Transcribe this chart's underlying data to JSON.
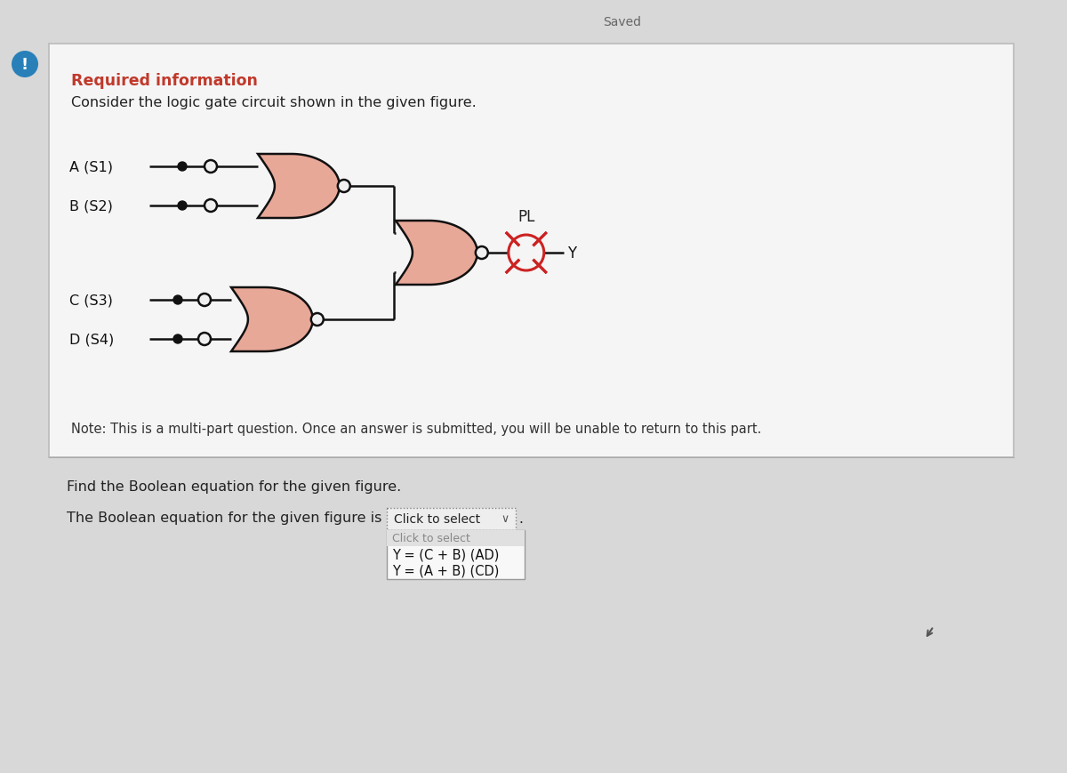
{
  "bg_color": "#d8d8d8",
  "panel_color": "#f5f5f5",
  "panel_border_color": "#bbbbbb",
  "title_text": "Required information",
  "title_color": "#c0392b",
  "subtitle_text": "Consider the logic gate circuit shown in the given figure.",
  "inputs_top": [
    "A (S1)",
    "B (S2)"
  ],
  "inputs_bottom": [
    "C (S3)",
    "D (S4)"
  ],
  "gate_fill": "#e8a898",
  "gate_edge": "#111111",
  "wire_color": "#111111",
  "node_color": "#111111",
  "bubble_fill": "#f0f0f0",
  "lamp_color": "#cc2222",
  "output_label": "Y",
  "pl_label": "PL",
  "saved_text": "Saved",
  "note_text": "Note: This is a multi-part question. Once an answer is submitted, you will be unable to return to this part.",
  "question_text": "Find the Boolean equation for the given figure.",
  "answer_prefix": "The Boolean equation for the given figure is",
  "dropdown_text": "Click to select",
  "option1": "Y = (C + B) (AD)",
  "option2": "Y = (A + B) (CD)",
  "exclamation_bg": "#2980b9",
  "lower_bg": "#d8d8d8",
  "separator_color": "#aaaaaa"
}
